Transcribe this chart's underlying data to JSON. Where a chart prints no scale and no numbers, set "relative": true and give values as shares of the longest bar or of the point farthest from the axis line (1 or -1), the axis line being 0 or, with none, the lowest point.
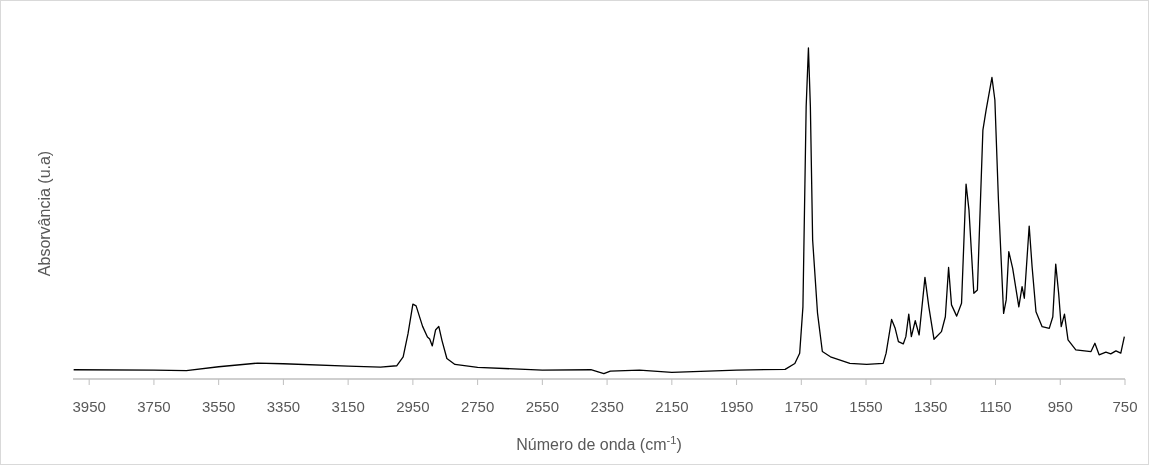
{
  "chart_data": {
    "type": "line",
    "relative": true,
    "xlabel": "Número de onda (cm$^{-1}$)",
    "ylabel": "Absorvância (u.a)",
    "xlim": [
      4000,
      750
    ],
    "xticks": [
      3950,
      3750,
      3550,
      3350,
      3150,
      2950,
      2750,
      2550,
      2350,
      2150,
      1950,
      1750,
      1550,
      1350,
      1150,
      950,
      750
    ],
    "grid": false,
    "tick_labels": "x",
    "line_style": "solid",
    "series": [
      {
        "color": "#000000",
        "x": [
          3998,
          3750,
          3650,
          3550,
          3430,
          3350,
          3150,
          3050,
          3000,
          2980,
          2965,
          2950,
          2940,
          2920,
          2905,
          2898,
          2890,
          2880,
          2870,
          2860,
          2845,
          2820,
          2750,
          2550,
          2400,
          2360,
          2340,
          2250,
          2150,
          1950,
          1800,
          1770,
          1755,
          1745,
          1735,
          1728,
          1722,
          1715,
          1700,
          1685,
          1660,
          1600,
          1548,
          1497,
          1488,
          1471,
          1460,
          1450,
          1435,
          1427,
          1418,
          1410,
          1398,
          1386,
          1368,
          1356,
          1340,
          1317,
          1305,
          1295,
          1286,
          1270,
          1255,
          1241,
          1232,
          1217,
          1206,
          1189,
          1179,
          1161,
          1152,
          1141,
          1125,
          1117,
          1109,
          1097,
          1078,
          1068,
          1061,
          1046,
          1037,
          1025,
          1006,
          984,
          973,
          964,
          955,
          947,
          937,
          926,
          902,
          855,
          843,
          830,
          809,
          794,
          778,
          763,
          752
        ],
        "values": [
          0.028,
          0.027,
          0.025,
          0.037,
          0.048,
          0.046,
          0.039,
          0.036,
          0.04,
          0.067,
          0.137,
          0.226,
          0.221,
          0.159,
          0.127,
          0.121,
          0.1,
          0.148,
          0.159,
          0.116,
          0.062,
          0.044,
          0.035,
          0.027,
          0.028,
          0.016,
          0.024,
          0.027,
          0.02,
          0.027,
          0.029,
          0.047,
          0.078,
          0.218,
          0.823,
          1.0,
          0.823,
          0.42,
          0.2,
          0.083,
          0.067,
          0.047,
          0.044,
          0.047,
          0.078,
          0.18,
          0.153,
          0.113,
          0.106,
          0.128,
          0.196,
          0.128,
          0.176,
          0.133,
          0.307,
          0.218,
          0.12,
          0.143,
          0.188,
          0.337,
          0.224,
          0.19,
          0.229,
          0.589,
          0.51,
          0.259,
          0.269,
          0.752,
          0.813,
          0.911,
          0.843,
          0.541,
          0.198,
          0.239,
          0.385,
          0.334,
          0.218,
          0.279,
          0.244,
          0.462,
          0.339,
          0.203,
          0.158,
          0.153,
          0.188,
          0.347,
          0.259,
          0.158,
          0.196,
          0.118,
          0.088,
          0.083,
          0.108,
          0.073,
          0.081,
          0.076,
          0.085,
          0.078,
          0.128
        ]
      }
    ]
  }
}
